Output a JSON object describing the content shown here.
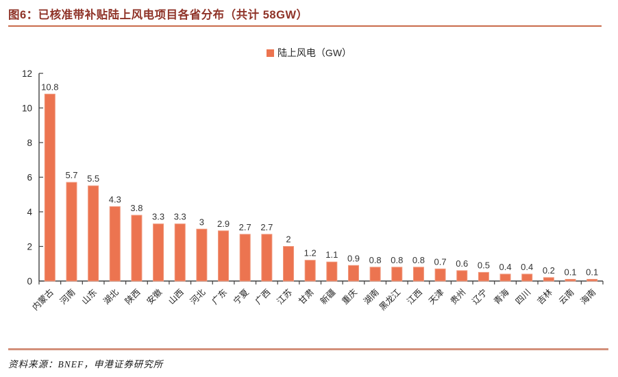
{
  "header": {
    "title": "图6：已核准带补贴陆上风电项目各省分布（共计 58GW）"
  },
  "legend": {
    "label": "陆上风电（GW）",
    "marker_color": "#EC7450"
  },
  "chart_data": {
    "type": "bar",
    "title": "已核准带补贴陆上风电项目各省分布（共计 58GW）",
    "xlabel": "",
    "ylabel": "",
    "unit": "GW",
    "legend": [
      "陆上风电（GW）"
    ],
    "legend_position": "top-center",
    "grid": false,
    "ylim": [
      0,
      12
    ],
    "yticks": [
      0,
      2,
      4,
      6,
      8,
      10,
      12
    ],
    "categories": [
      "内蒙古",
      "河南",
      "山东",
      "湖北",
      "陕西",
      "安徽",
      "山西",
      "河北",
      "广东",
      "宁夏",
      "广西",
      "江苏",
      "甘肃",
      "新疆",
      "重庆",
      "湖南",
      "黑龙江",
      "江西",
      "天津",
      "贵州",
      "辽宁",
      "青海",
      "四川",
      "吉林",
      "云南",
      "海南"
    ],
    "values": [
      10.8,
      5.7,
      5.5,
      4.3,
      3.8,
      3.3,
      3.3,
      3,
      2.9,
      2.7,
      2.7,
      2,
      1.2,
      1.1,
      0.9,
      0.8,
      0.8,
      0.8,
      0.7,
      0.6,
      0.5,
      0.4,
      0.4,
      0.2,
      0.1,
      0.1
    ],
    "bar_color": "#EC7450",
    "bar_stroke": "#F0977B",
    "axis_color": "#404040",
    "label_color": "#333333",
    "tick_label_color": "#262626"
  },
  "footer": {
    "source": "资料来源：BNEF，申港证券研究所"
  },
  "colors": {
    "title": "#8F3328",
    "title_rule": "#C96A4A",
    "footer_rule": "#D3907A",
    "background": "#FFFFFF"
  }
}
